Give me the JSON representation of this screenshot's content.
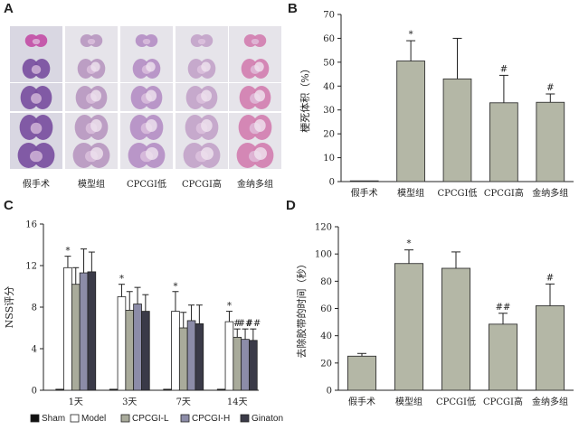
{
  "panels": {
    "A": {
      "letter": "A",
      "kind": "tissue-image-grid",
      "columns": [
        "假手术",
        "模型组",
        "CPCGI低",
        "CPCGI高",
        "金纳多组"
      ],
      "slices_per_column": 5
    },
    "B": {
      "letter": "B"
    },
    "C": {
      "letter": "C"
    },
    "D": {
      "letter": "D"
    }
  },
  "chart_data": [
    {
      "panel": "B",
      "type": "bar",
      "ylabel": "梗死体积（%）",
      "ylim": [
        0,
        70
      ],
      "yticks": [
        0,
        10,
        20,
        30,
        40,
        50,
        60,
        70
      ],
      "categories": [
        "假手术",
        "模型组",
        "CPCGI低",
        "CPCGI高",
        "金纳多组"
      ],
      "values": [
        0.3,
        50.5,
        43,
        33,
        33.2
      ],
      "errors": [
        0,
        8.5,
        17,
        11.5,
        3.5
      ],
      "annotations": [
        "",
        "*",
        "",
        "#",
        "#"
      ],
      "bar_color": "#b4b7a6"
    },
    {
      "panel": "C",
      "type": "bar",
      "ylabel": "NSS评分",
      "ylim": [
        0,
        16
      ],
      "yticks": [
        0,
        4,
        8,
        12,
        16
      ],
      "categories": [
        "1天",
        "3天",
        "7天",
        "14天"
      ],
      "series": [
        {
          "name": "Sham",
          "color": "#111111",
          "values": [
            0.1,
            0.1,
            0.1,
            0.1
          ],
          "errors": [
            0,
            0,
            0,
            0
          ]
        },
        {
          "name": "Model",
          "color": "#ffffff",
          "values": [
            11.8,
            9.0,
            7.6,
            6.6
          ],
          "errors": [
            1.1,
            1.2,
            1.9,
            1.0
          ]
        },
        {
          "name": "CPCGI-L",
          "color": "#a9ab9b",
          "values": [
            10.2,
            7.7,
            6.0,
            5.1
          ],
          "errors": [
            1.6,
            1.8,
            1.5,
            0.8
          ]
        },
        {
          "name": "CPCGI-H",
          "color": "#8c8ca8",
          "values": [
            11.3,
            8.3,
            6.7,
            4.9
          ],
          "errors": [
            2.3,
            1.6,
            1.5,
            1.0
          ]
        },
        {
          "name": "Ginaton",
          "color": "#3a3a48",
          "values": [
            11.4,
            7.6,
            6.4,
            4.8
          ],
          "errors": [
            1.9,
            1.6,
            1.8,
            1.1
          ]
        }
      ],
      "annotations": [
        [
          "",
          "*",
          "",
          "",
          ""
        ],
        [
          "",
          "*",
          "",
          "",
          ""
        ],
        [
          "",
          "*",
          "",
          "",
          ""
        ],
        [
          "",
          "*",
          "#",
          "##",
          "##"
        ]
      ],
      "legend": "bottom"
    },
    {
      "panel": "D",
      "type": "bar",
      "ylabel": "去除胶带的时间（秒）",
      "ylim": [
        0,
        120
      ],
      "yticks": [
        0,
        20,
        40,
        60,
        80,
        100,
        120
      ],
      "categories": [
        "假手术",
        "模型组",
        "CPCGI低",
        "CPCGI高",
        "金纳多组"
      ],
      "values": [
        25,
        93,
        89.5,
        48.5,
        62
      ],
      "errors": [
        2,
        10,
        12,
        8,
        16
      ],
      "annotations": [
        "",
        "*",
        "",
        "##",
        "#"
      ],
      "bar_color": "#b4b7a6"
    }
  ]
}
